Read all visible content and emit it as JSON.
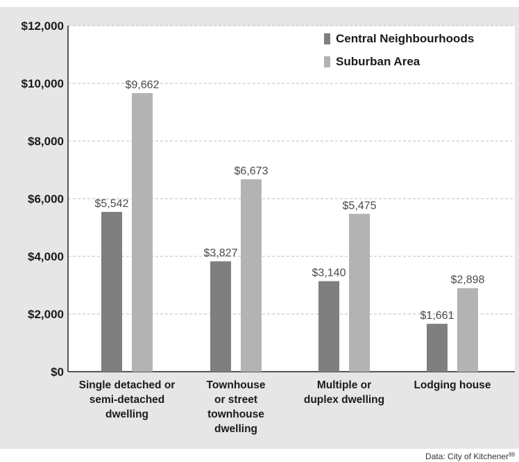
{
  "chart_data": {
    "type": "bar",
    "categories": [
      [
        "Single detached or",
        "semi-detached",
        "dwelling"
      ],
      [
        "Townhouse",
        "or street",
        "townhouse",
        "dwelling"
      ],
      [
        "Multiple or",
        "duplex dwelling"
      ],
      [
        "Lodging house"
      ]
    ],
    "series": [
      {
        "name": "Central Neighbourhoods",
        "color": "#7f7f7f",
        "values": [
          5542,
          3827,
          3140,
          1661
        ],
        "labels": [
          "$5,542",
          "$3,827",
          "$3,140",
          "$1,661"
        ]
      },
      {
        "name": "Suburban Area",
        "color": "#b3b3b3",
        "values": [
          9662,
          6673,
          5475,
          2898
        ],
        "labels": [
          "$9,662",
          "$6,673",
          "$5,475",
          "$2,898"
        ]
      }
    ],
    "ylim": [
      0,
      12000
    ],
    "yticks": [
      0,
      2000,
      4000,
      6000,
      8000,
      10000,
      12000
    ],
    "ytick_labels": [
      "$0",
      "$2,000",
      "$4,000",
      "$6,000",
      "$8,000",
      "$10,000",
      "$12,000"
    ],
    "grid": true,
    "legend_position": "top-right",
    "title": "",
    "xlabel": "",
    "ylabel": ""
  },
  "source": {
    "text": "Data: City of Kitchener",
    "ref": "99"
  }
}
